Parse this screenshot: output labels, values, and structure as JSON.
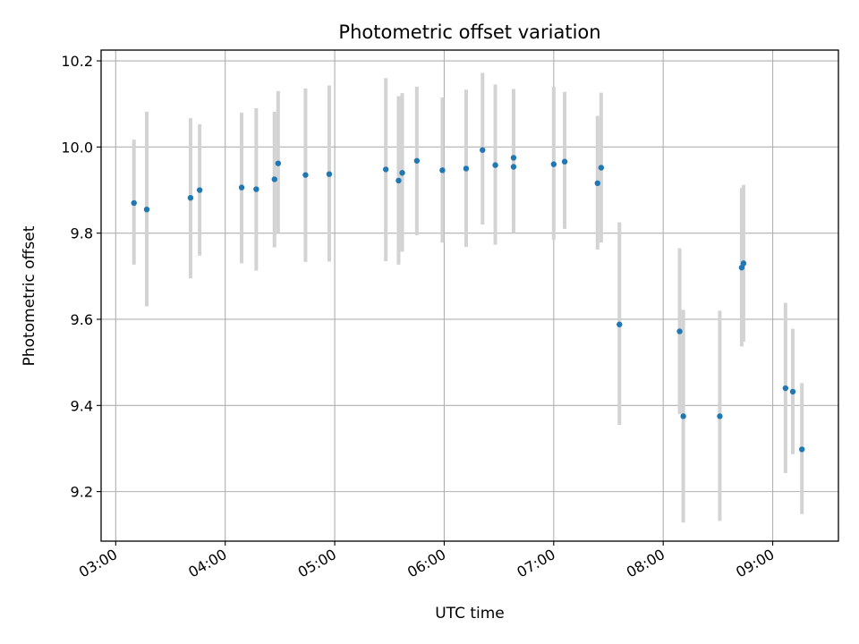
{
  "chart_data": {
    "type": "scatter",
    "title": "Photometric offset variation",
    "xlabel": "UTC time",
    "ylabel": "Photometric offset",
    "x_axis": {
      "kind": "time",
      "range": [
        "02:52",
        "09:36"
      ],
      "ticks": [
        "03:00",
        "04:00",
        "05:00",
        "06:00",
        "07:00",
        "08:00",
        "09:00"
      ]
    },
    "y_axis": {
      "range": [
        9.085,
        10.225
      ],
      "ticks": [
        "9.2",
        "9.4",
        "9.6",
        "9.8",
        "10.0",
        "10.2"
      ]
    },
    "grid": true,
    "error_bar_color": "#d3d3d3",
    "point_color": "#1f77b4",
    "points": [
      {
        "time": "03:10",
        "y": 9.87,
        "ylo": 9.727,
        "yhi": 10.017
      },
      {
        "time": "03:17",
        "y": 9.855,
        "ylo": 9.63,
        "yhi": 10.082
      },
      {
        "time": "03:41",
        "y": 9.882,
        "ylo": 9.695,
        "yhi": 10.067
      },
      {
        "time": "03:46",
        "y": 9.9,
        "ylo": 9.748,
        "yhi": 10.053
      },
      {
        "time": "04:09",
        "y": 9.906,
        "ylo": 9.73,
        "yhi": 10.08
      },
      {
        "time": "04:17",
        "y": 9.902,
        "ylo": 9.713,
        "yhi": 10.09
      },
      {
        "time": "04:27",
        "y": 9.925,
        "ylo": 9.767,
        "yhi": 10.082
      },
      {
        "time": "04:29",
        "y": 9.962,
        "ylo": 9.8,
        "yhi": 10.13
      },
      {
        "time": "04:44",
        "y": 9.935,
        "ylo": 9.733,
        "yhi": 10.136
      },
      {
        "time": "04:57",
        "y": 9.937,
        "ylo": 9.734,
        "yhi": 10.143
      },
      {
        "time": "05:28",
        "y": 9.948,
        "ylo": 9.735,
        "yhi": 10.16
      },
      {
        "time": "05:35",
        "y": 9.922,
        "ylo": 9.727,
        "yhi": 10.118
      },
      {
        "time": "05:37",
        "y": 9.94,
        "ylo": 9.757,
        "yhi": 10.125
      },
      {
        "time": "05:45",
        "y": 9.968,
        "ylo": 9.795,
        "yhi": 10.14
      },
      {
        "time": "05:59",
        "y": 9.946,
        "ylo": 9.778,
        "yhi": 10.115
      },
      {
        "time": "06:12",
        "y": 9.95,
        "ylo": 9.768,
        "yhi": 10.133
      },
      {
        "time": "06:21",
        "y": 9.993,
        "ylo": 9.82,
        "yhi": 10.172
      },
      {
        "time": "06:28",
        "y": 9.958,
        "ylo": 9.773,
        "yhi": 10.145
      },
      {
        "time": "06:38",
        "y": 9.954,
        "ylo": 9.8,
        "yhi": 10.135
      },
      {
        "time": "06:38",
        "y": 9.975,
        "ylo": 9.822,
        "yhi": 10.127
      },
      {
        "time": "07:00",
        "y": 9.96,
        "ylo": 9.785,
        "yhi": 10.14
      },
      {
        "time": "07:06",
        "y": 9.966,
        "ylo": 9.81,
        "yhi": 10.128
      },
      {
        "time": "07:24",
        "y": 9.916,
        "ylo": 9.762,
        "yhi": 10.072
      },
      {
        "time": "07:26",
        "y": 9.952,
        "ylo": 9.778,
        "yhi": 10.126
      },
      {
        "time": "07:36",
        "y": 9.588,
        "ylo": 9.355,
        "yhi": 9.825
      },
      {
        "time": "08:09",
        "y": 9.572,
        "ylo": 9.38,
        "yhi": 9.765
      },
      {
        "time": "08:11",
        "y": 9.375,
        "ylo": 9.128,
        "yhi": 9.622
      },
      {
        "time": "08:31",
        "y": 9.375,
        "ylo": 9.132,
        "yhi": 9.62
      },
      {
        "time": "08:43",
        "y": 9.72,
        "ylo": 9.537,
        "yhi": 9.905
      },
      {
        "time": "08:44",
        "y": 9.73,
        "ylo": 9.548,
        "yhi": 9.912
      },
      {
        "time": "09:07",
        "y": 9.44,
        "ylo": 9.243,
        "yhi": 9.638
      },
      {
        "time": "09:11",
        "y": 9.432,
        "ylo": 9.287,
        "yhi": 9.578
      },
      {
        "time": "09:16",
        "y": 9.298,
        "ylo": 9.148,
        "yhi": 9.452
      }
    ]
  }
}
